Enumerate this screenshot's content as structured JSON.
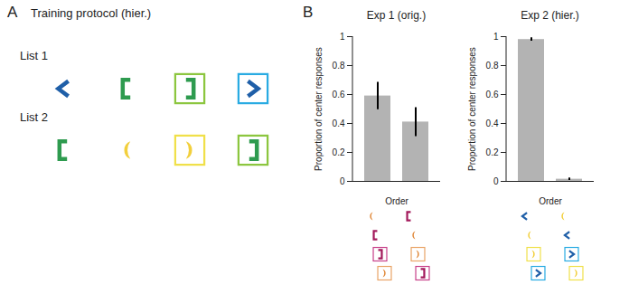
{
  "diagram": {
    "panel": "A",
    "title": "Training protocol (hier.)",
    "rows": [
      "List 1",
      "List 2"
    ]
  },
  "chart_panel": "B",
  "chart_data": [
    {
      "type": "bar",
      "title": "Exp 1 (orig.)",
      "categories": [
        null,
        null
      ],
      "values": [
        0.59,
        0.41
      ],
      "errors": [
        0.095,
        0.1
      ],
      "color": "#b3b3b3",
      "ylim": [
        0,
        1
      ],
      "yticks": [
        0,
        0.2,
        0.4,
        0.6,
        0.8,
        1
      ],
      "y_label": "Proportion of center responses",
      "x_label": "Order"
    },
    {
      "type": "bar",
      "title": "Exp 2 (hier.)",
      "categories": [
        null,
        null
      ],
      "values": [
        0.98,
        0.015
      ],
      "errors": [
        0.012,
        0.008
      ],
      "color": "#b3b3b3",
      "ylim": [
        0,
        1
      ],
      "yticks": [
        0,
        0.2,
        0.4,
        0.6,
        0.8,
        1
      ],
      "y_label": "Proportion of center responses",
      "x_label": "Order"
    }
  ]
}
